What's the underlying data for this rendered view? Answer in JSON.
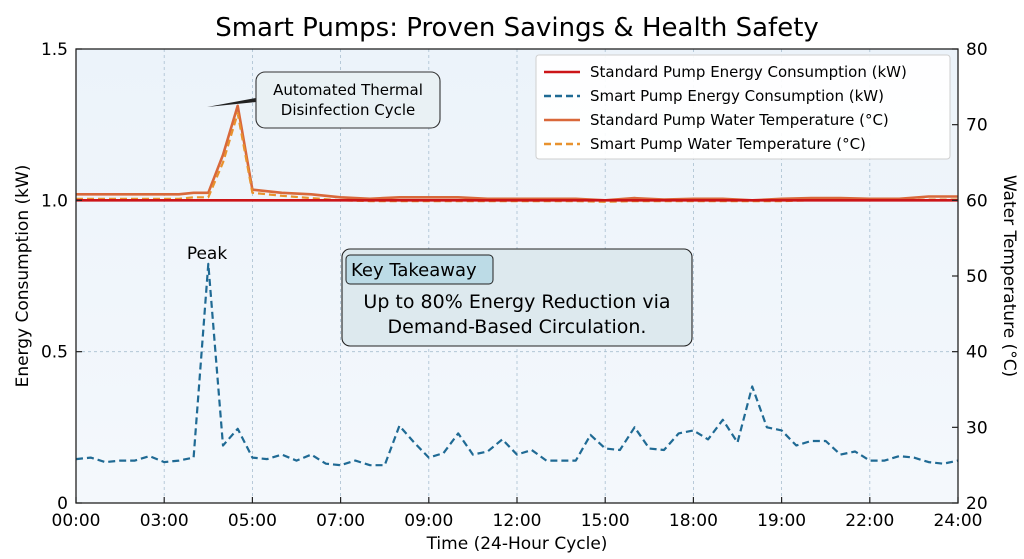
{
  "chart_data": {
    "type": "line",
    "title": "Smart Pumps: Proven Savings & Health Safety",
    "xlabel": "Time (24-Hour Cycle)",
    "ylabel": "Energy Consumption (kW)",
    "ylabel_right": "Water Temperature (°C)",
    "ylim": [
      0,
      1.5
    ],
    "ylim_right": [
      20,
      80
    ],
    "xlim": [
      0,
      60
    ],
    "grid": true,
    "legend_position": "top-right",
    "x_ticks": [
      0,
      6,
      12,
      18,
      24,
      30,
      36,
      42,
      48,
      54,
      60
    ],
    "x_tick_labels": [
      "00:00",
      "03:00",
      "05:00",
      "07:00",
      "09:00",
      "12:00",
      "15:00",
      "18:00",
      "19:00",
      "22:00",
      "24:00"
    ],
    "y_ticks": [
      0,
      0.5,
      1.0,
      1.5
    ],
    "y_tick_labels": [
      "0",
      "0.5",
      "1.0",
      "1.5"
    ],
    "y_ticks_right": [
      20,
      30,
      40,
      50,
      60,
      70,
      80
    ],
    "y_tick_labels_right": [
      "20",
      "30",
      "40",
      "50",
      "60",
      "70",
      "80"
    ],
    "series": [
      {
        "name": "Standard Pump Energy Consumption (kW)",
        "axis": "left",
        "color": "#cc1418",
        "style": "solid",
        "x": [
          0,
          60
        ],
        "values": [
          1.0,
          1.0
        ]
      },
      {
        "name": "Smart Pump Energy Consumption (kW)",
        "axis": "left",
        "color": "#1f6a94",
        "style": "dashed",
        "x": [
          0,
          1,
          2,
          3,
          4,
          5,
          6,
          7,
          8,
          9,
          10,
          11,
          12,
          13,
          14,
          15,
          16,
          17,
          18,
          19,
          20,
          21,
          22,
          23,
          24,
          25,
          26,
          27,
          28,
          29,
          30,
          31,
          32,
          33,
          34,
          35,
          36,
          37,
          38,
          39,
          40,
          41,
          42,
          43,
          44,
          45,
          46,
          47,
          48,
          49,
          50,
          51,
          52,
          53,
          54,
          55,
          56,
          57,
          58,
          59,
          60
        ],
        "values": [
          0.145,
          0.15,
          0.135,
          0.14,
          0.14,
          0.155,
          0.135,
          0.14,
          0.15,
          0.79,
          0.19,
          0.245,
          0.15,
          0.145,
          0.16,
          0.14,
          0.16,
          0.13,
          0.125,
          0.14,
          0.125,
          0.125,
          0.255,
          0.2,
          0.15,
          0.165,
          0.23,
          0.16,
          0.17,
          0.21,
          0.16,
          0.175,
          0.14,
          0.14,
          0.14,
          0.225,
          0.18,
          0.175,
          0.25,
          0.18,
          0.175,
          0.23,
          0.24,
          0.21,
          0.275,
          0.2,
          0.385,
          0.25,
          0.24,
          0.19,
          0.205,
          0.205,
          0.16,
          0.17,
          0.14,
          0.14,
          0.155,
          0.15,
          0.135,
          0.13,
          0.14
        ]
      },
      {
        "name": "Standard Pump Water Temperature (°C)",
        "axis": "right",
        "color": "#d9683a",
        "style": "solid",
        "x": [
          0,
          4,
          7,
          8,
          9,
          10,
          11,
          12,
          14,
          16,
          18,
          20,
          22,
          24,
          26,
          28,
          30,
          32,
          34,
          36,
          38,
          40,
          42,
          44,
          46,
          48,
          50,
          52,
          54,
          56,
          58,
          60
        ],
        "values": [
          60.8,
          60.8,
          60.8,
          61.0,
          61.0,
          66.0,
          72.5,
          61.4,
          61.0,
          60.8,
          60.4,
          60.2,
          60.4,
          60.4,
          60.4,
          60.2,
          60.2,
          60.2,
          60.2,
          60.0,
          60.3,
          60.1,
          60.2,
          60.2,
          60.0,
          60.2,
          60.3,
          60.3,
          60.2,
          60.2,
          60.5,
          60.5
        ]
      },
      {
        "name": "Smart Pump Water Temperature (°C)",
        "axis": "right",
        "color": "#e8922e",
        "style": "dashed",
        "x": [
          0,
          4,
          7,
          8,
          9,
          10,
          11,
          12,
          14,
          16,
          18,
          20,
          22,
          24,
          26,
          28,
          30,
          32,
          34,
          36,
          38,
          40,
          42,
          44,
          46,
          48,
          50,
          52,
          54,
          56,
          58,
          60
        ],
        "values": [
          60.2,
          60.2,
          60.2,
          60.4,
          60.4,
          65.0,
          71.5,
          61.0,
          60.6,
          60.3,
          60.0,
          59.9,
          59.9,
          59.9,
          59.9,
          59.9,
          59.9,
          59.9,
          59.9,
          59.8,
          59.9,
          59.9,
          59.9,
          59.9,
          59.9,
          59.9,
          60.0,
          60.0,
          60.0,
          60.0,
          60.1,
          60.1
        ]
      }
    ],
    "annotations": [
      {
        "text": "Automated Thermal Disinfection Cycle",
        "lines": [
          "Automated Thermal",
          "Disinfection Cycle"
        ],
        "target_x": 9,
        "target_y": 72.5,
        "axis": "right"
      },
      {
        "text": "Peak",
        "target_x": 9,
        "target_y": 0.79,
        "axis": "left"
      }
    ],
    "callout": {
      "heading": "Key Takeaway",
      "lines": [
        "Up to 80% Energy Reduction via",
        "Demand-Based Circulation."
      ]
    }
  }
}
